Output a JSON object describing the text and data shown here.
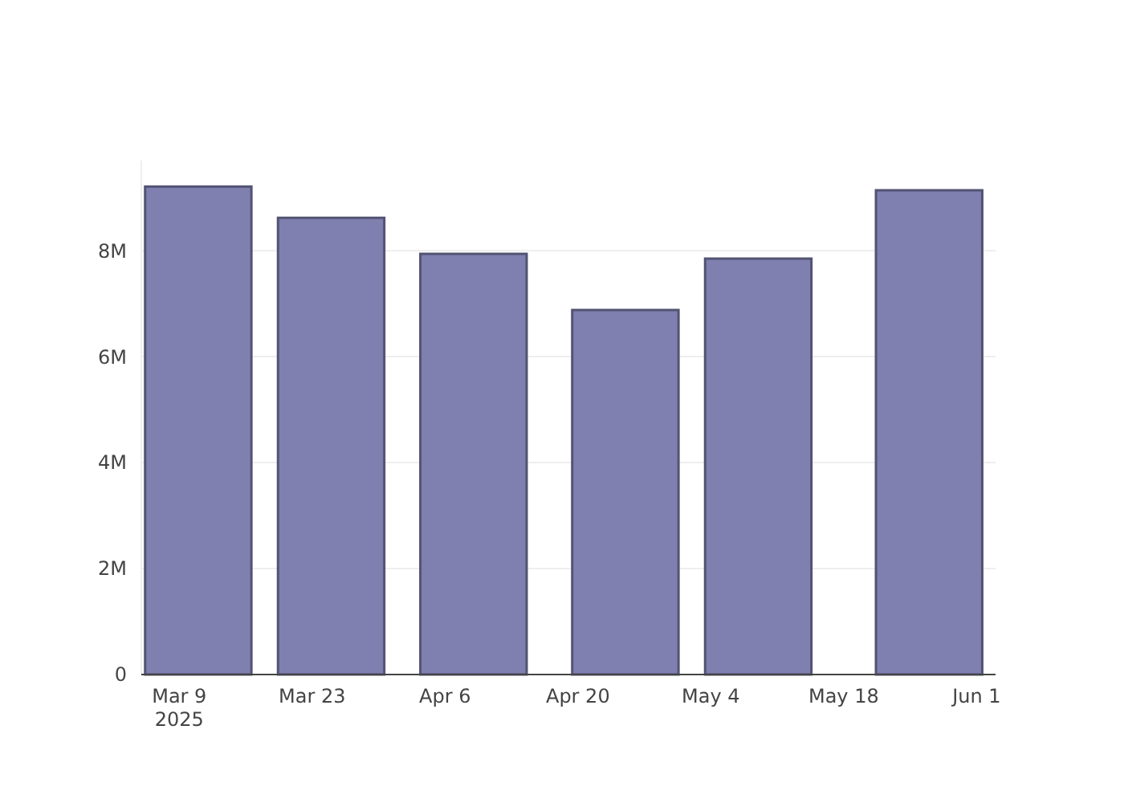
{
  "chart_data": {
    "type": "bar",
    "x": [
      "2025-03-11",
      "2025-03-25",
      "2025-04-09",
      "2025-04-25",
      "2025-05-09",
      "2025-05-27"
    ],
    "values": [
      9210000,
      8620000,
      7940000,
      6880000,
      7850000,
      9140000
    ],
    "color": "#7f7fb0",
    "xlim": [
      "2025-03-05",
      "2025-06-03"
    ],
    "xticks": [
      {
        "value": "2025-03-09",
        "label": "Mar 9\n2025"
      },
      {
        "value": "2025-03-23",
        "label": "Mar 23"
      },
      {
        "value": "2025-04-06",
        "label": "Apr 6"
      },
      {
        "value": "2025-04-20",
        "label": "Apr 20"
      },
      {
        "value": "2025-05-04",
        "label": "May 4"
      },
      {
        "value": "2025-05-18",
        "label": "May 18"
      },
      {
        "value": "2025-06-01",
        "label": "Jun 1"
      }
    ],
    "yticks": [
      0,
      {
        "value": 2000000,
        "label": "2M"
      },
      {
        "value": 4000000,
        "label": "4M"
      },
      {
        "value": 6000000,
        "label": "6M"
      },
      {
        "value": 8000000,
        "label": "8M"
      }
    ],
    "ylim": [
      0,
      9700000
    ],
    "grid": "y"
  }
}
